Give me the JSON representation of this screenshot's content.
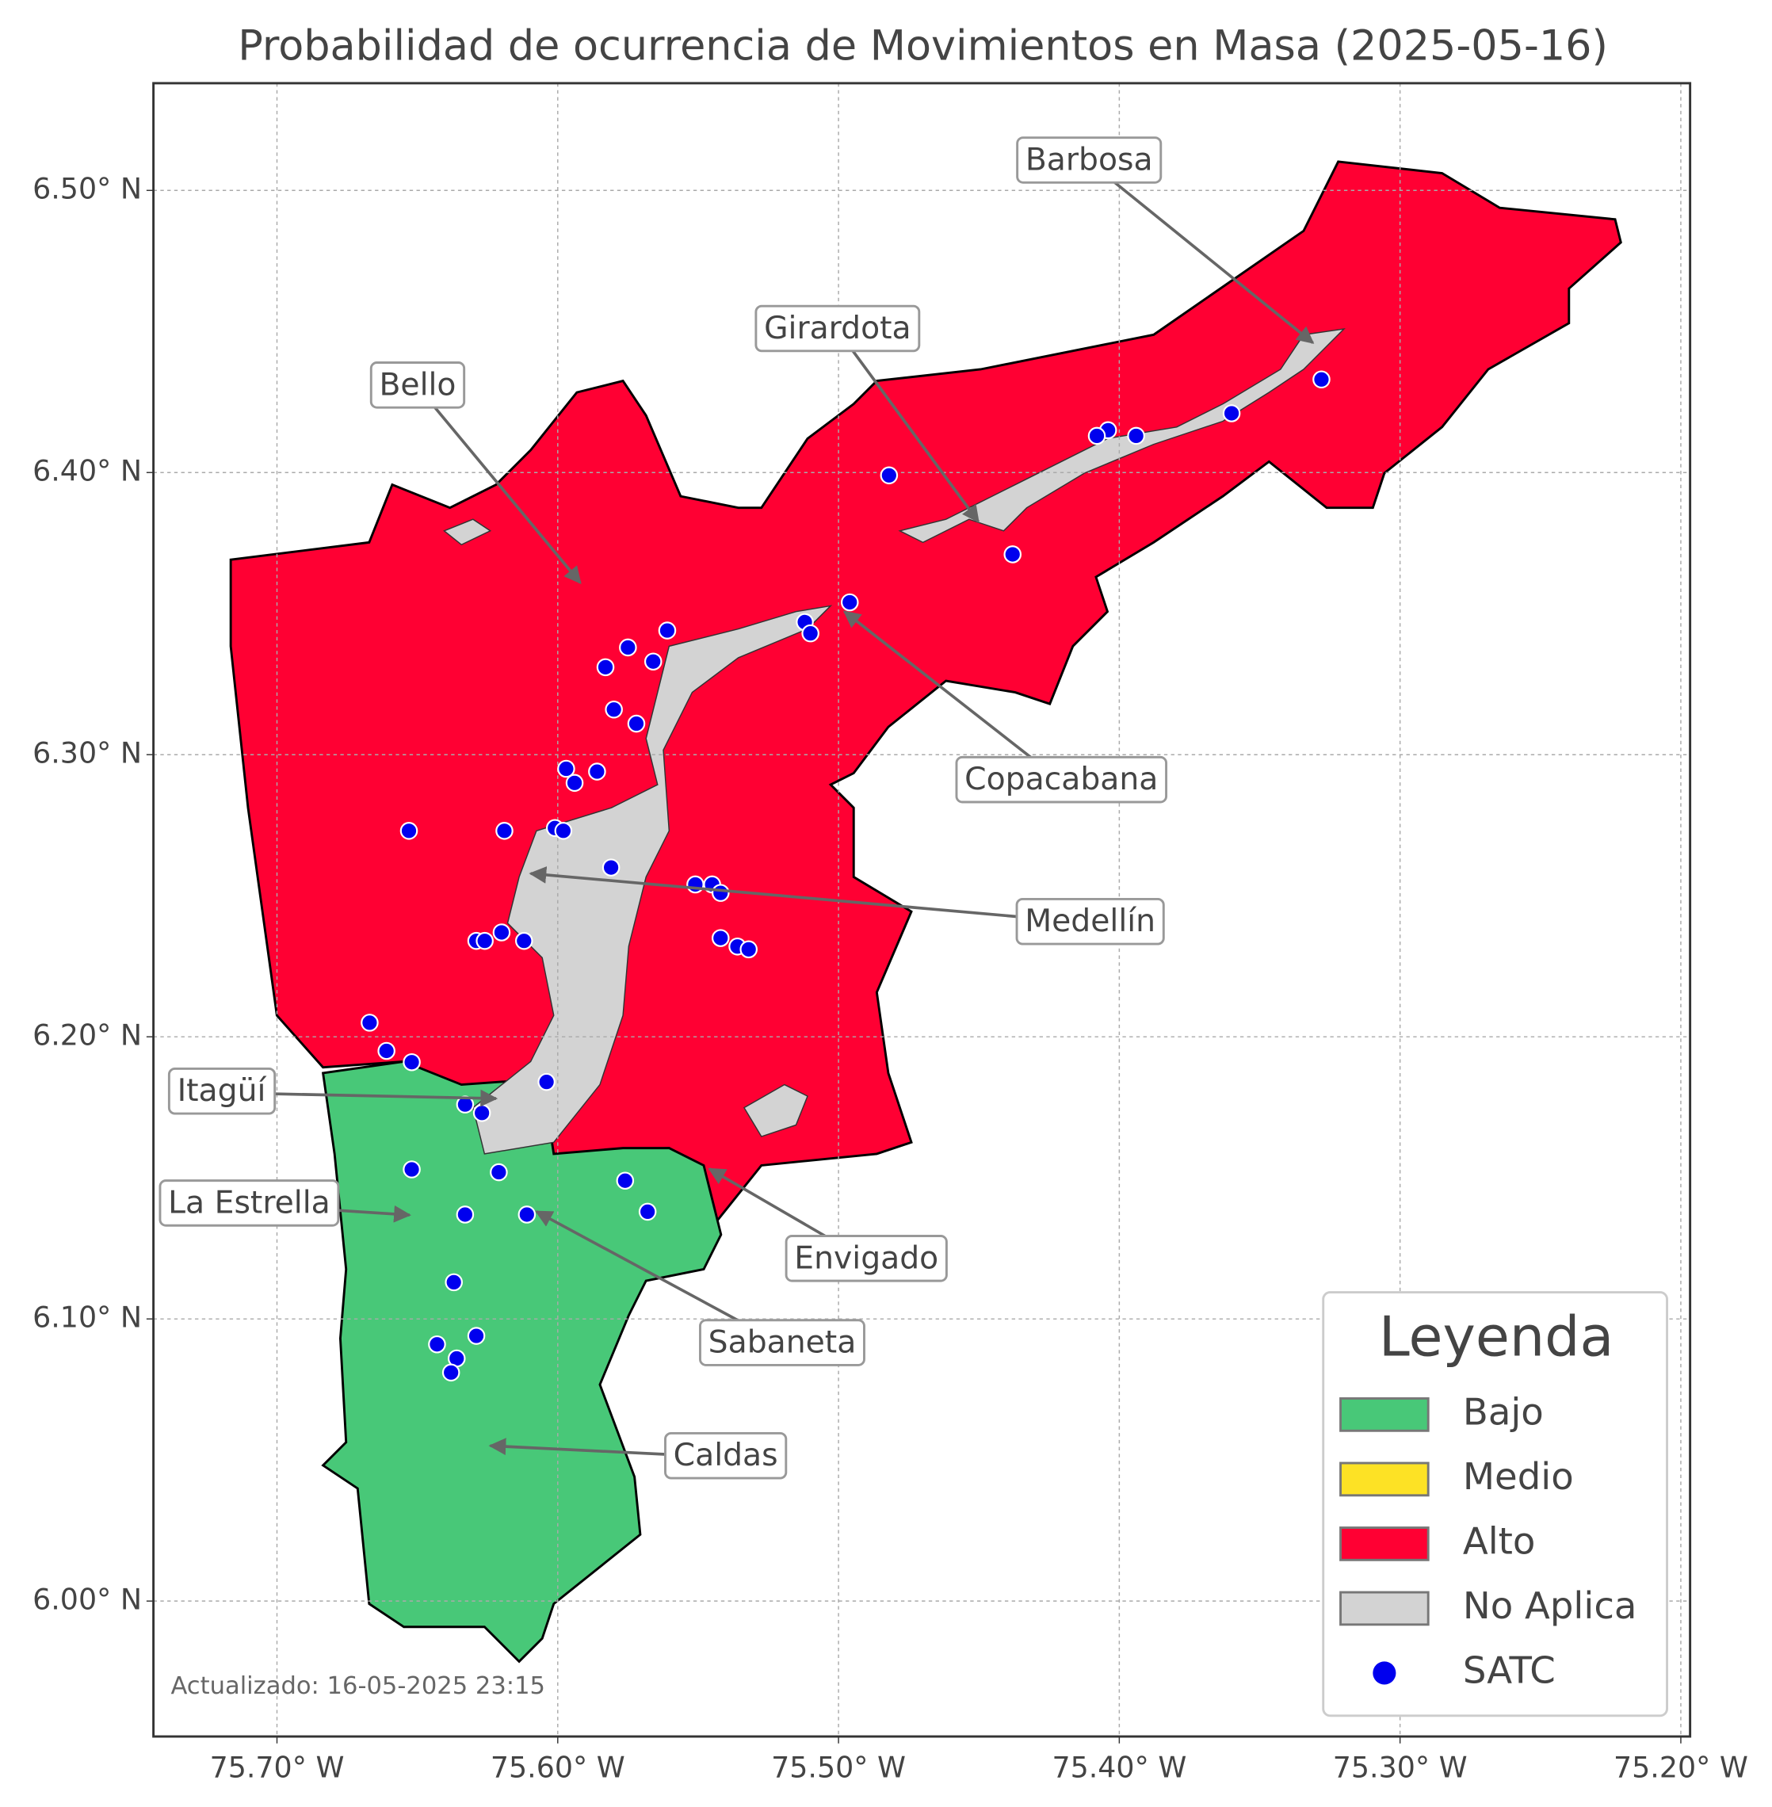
{
  "map": {
    "title": "Probabilidad de ocurrencia de Movimientos en Masa (2025-05-16)",
    "xlim": [
      -75.744,
      -75.1967
    ],
    "ylim": [
      5.952,
      6.538
    ],
    "xticks": [
      {
        "value": -75.7,
        "label": "75.70° W"
      },
      {
        "value": -75.6,
        "label": "75.60° W"
      },
      {
        "value": -75.5,
        "label": "75.50° W"
      },
      {
        "value": -75.4,
        "label": "75.40° W"
      },
      {
        "value": -75.3,
        "label": "75.30° W"
      },
      {
        "value": -75.2,
        "label": "75.20° W"
      }
    ],
    "yticks": [
      {
        "value": 6.0,
        "label": "6.00° N"
      },
      {
        "value": 6.1,
        "label": "6.10° N"
      },
      {
        "value": 6.2,
        "label": "6.20° N"
      },
      {
        "value": 6.3,
        "label": "6.30° N"
      },
      {
        "value": 6.4,
        "label": "6.40° N"
      },
      {
        "value": 6.5,
        "label": "6.50° N"
      }
    ],
    "grid": true,
    "municipalities": [
      "Barbosa",
      "Girardota",
      "Bello",
      "Copacabana",
      "Medellín",
      "Itagüí",
      "La Estrella",
      "Envigado",
      "Sabaneta",
      "Caldas"
    ],
    "legend": {
      "title": "Leyenda",
      "items": [
        {
          "label": "Bajo",
          "color": "#48c878"
        },
        {
          "label": "Medio",
          "color": "#fde225"
        },
        {
          "label": "Alto",
          "color": "#ff0033"
        },
        {
          "label": "No Aplica",
          "color": "#d3d3d3"
        },
        {
          "label": "SATC",
          "color": "#0000ee"
        }
      ]
    },
    "satc_stations": [
      [
        -75.328,
        6.433
      ],
      [
        -75.36,
        6.421
      ],
      [
        -75.394,
        6.413
      ],
      [
        -75.404,
        6.415
      ],
      [
        -75.408,
        6.413
      ],
      [
        -75.482,
        6.399
      ],
      [
        -75.438,
        6.371
      ],
      [
        -75.496,
        6.354
      ],
      [
        -75.512,
        6.347
      ],
      [
        -75.51,
        6.343
      ],
      [
        -75.561,
        6.344
      ],
      [
        -75.575,
        6.338
      ],
      [
        -75.583,
        6.331
      ],
      [
        -75.566,
        6.333
      ],
      [
        -75.58,
        6.316
      ],
      [
        -75.572,
        6.311
      ],
      [
        -75.597,
        6.295
      ],
      [
        -75.586,
        6.294
      ],
      [
        -75.594,
        6.29
      ],
      [
        -75.653,
        6.273
      ],
      [
        -75.619,
        6.273
      ],
      [
        -75.601,
        6.274
      ],
      [
        -75.598,
        6.273
      ],
      [
        -75.581,
        6.26
      ],
      [
        -75.551,
        6.254
      ],
      [
        -75.545,
        6.254
      ],
      [
        -75.542,
        6.251
      ],
      [
        -75.542,
        6.235
      ],
      [
        -75.536,
        6.232
      ],
      [
        -75.532,
        6.231
      ],
      [
        -75.62,
        6.237
      ],
      [
        -75.629,
        6.234
      ],
      [
        -75.626,
        6.234
      ],
      [
        -75.612,
        6.234
      ],
      [
        -75.667,
        6.205
      ],
      [
        -75.661,
        6.195
      ],
      [
        -75.652,
        6.191
      ],
      [
        -75.604,
        6.184
      ],
      [
        -75.633,
        6.176
      ],
      [
        -75.627,
        6.173
      ],
      [
        -75.652,
        6.153
      ],
      [
        -75.621,
        6.152
      ],
      [
        -75.576,
        6.149
      ],
      [
        -75.568,
        6.138
      ],
      [
        -75.633,
        6.137
      ],
      [
        -75.611,
        6.137
      ],
      [
        -75.637,
        6.113
      ],
      [
        -75.643,
        6.091
      ],
      [
        -75.629,
        6.094
      ],
      [
        -75.636,
        6.086
      ],
      [
        -75.638,
        6.081
      ]
    ],
    "footnote": "Actualizado: 16-05-2025 23:15"
  }
}
